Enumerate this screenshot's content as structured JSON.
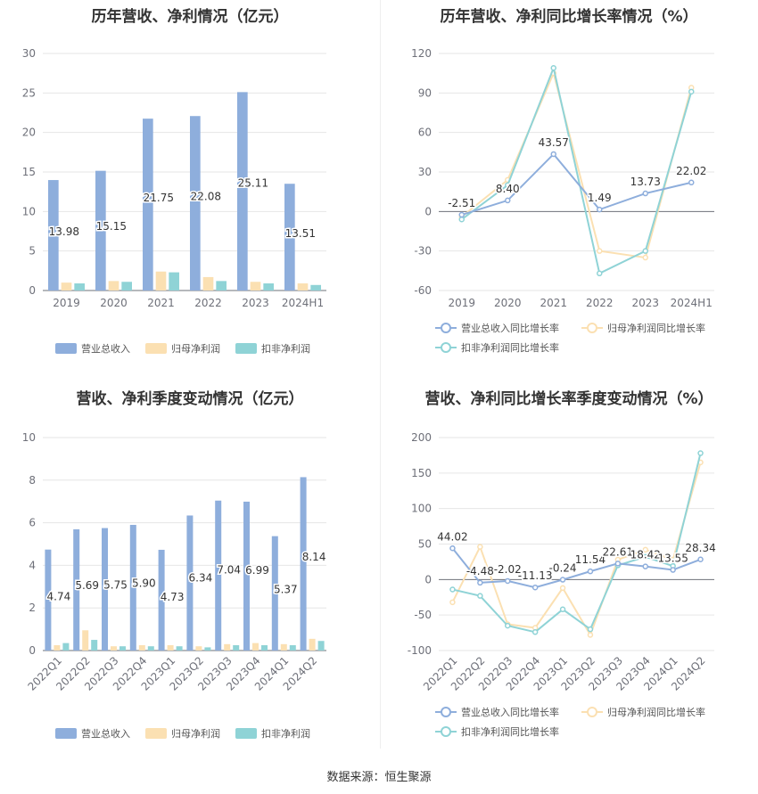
{
  "footer": "数据来源：恒生聚源",
  "legend": {
    "bar": [
      "营业总收入",
      "归母净利润",
      "扣非净利润"
    ],
    "line": [
      "营业总收入同比增长率",
      "归母净利润同比增长率",
      "扣非净利润同比增长率"
    ]
  },
  "colors": {
    "revenue": "#8eaedc",
    "net_profit": "#fbe0b2",
    "deducted": "#8fd3d6"
  },
  "chart_data": [
    {
      "type": "bar",
      "title": "历年营收、净利情况（亿元）",
      "categories": [
        "2019",
        "2020",
        "2021",
        "2022",
        "2023",
        "2024H1"
      ],
      "ylim": [
        0,
        30
      ],
      "yticks": [
        0,
        5,
        10,
        15,
        20,
        25,
        30
      ],
      "series": [
        {
          "name": "营业总收入",
          "values": [
            13.98,
            15.15,
            21.75,
            22.08,
            25.11,
            13.51
          ],
          "labels": [
            "13.98",
            "15.15",
            "21.75",
            "22.08",
            "25.11",
            "13.51"
          ]
        },
        {
          "name": "归母净利润",
          "values": [
            1.0,
            1.2,
            2.4,
            1.7,
            1.1,
            0.9
          ]
        },
        {
          "name": "扣非净利润",
          "values": [
            0.9,
            1.1,
            2.3,
            1.2,
            0.9,
            0.7
          ]
        }
      ]
    },
    {
      "type": "line",
      "title": "历年营收、净利同比增长率情况（%）",
      "categories": [
        "2019",
        "2020",
        "2021",
        "2022",
        "2023",
        "2024H1"
      ],
      "ylim": [
        -60,
        120
      ],
      "yticks": [
        -60,
        -30,
        0,
        30,
        60,
        90,
        120
      ],
      "series": [
        {
          "name": "营业总收入同比增长率",
          "values": [
            -2.51,
            8.4,
            43.57,
            1.49,
            13.73,
            22.02
          ],
          "labels": [
            "-2.51",
            "8.40",
            "43.57",
            "1.49",
            "13.73",
            "22.02"
          ]
        },
        {
          "name": "归母净利润同比增长率",
          "values": [
            -4,
            24,
            105,
            -30,
            -35,
            94
          ]
        },
        {
          "name": "扣非净利润同比增长率",
          "values": [
            -6,
            20,
            109,
            -47,
            -30,
            91
          ]
        }
      ]
    },
    {
      "type": "bar",
      "title": "营收、净利季度变动情况（亿元）",
      "categories": [
        "2022Q1",
        "2022Q2",
        "2022Q3",
        "2022Q4",
        "2023Q1",
        "2023Q2",
        "2023Q3",
        "2023Q4",
        "2024Q1",
        "2024Q2"
      ],
      "ylim": [
        0,
        10
      ],
      "yticks": [
        0,
        2,
        4,
        6,
        8,
        10
      ],
      "series": [
        {
          "name": "营业总收入",
          "values": [
            4.74,
            5.69,
            5.75,
            5.9,
            4.73,
            6.34,
            7.04,
            6.99,
            5.37,
            8.14
          ],
          "labels": [
            "4.74",
            "5.69",
            "5.75",
            "5.90",
            "4.73",
            "6.34",
            "7.04",
            "6.99",
            "5.37",
            "8.14"
          ]
        },
        {
          "name": "归母净利润",
          "values": [
            0.25,
            0.95,
            0.2,
            0.25,
            0.25,
            0.2,
            0.3,
            0.35,
            0.3,
            0.55
          ]
        },
        {
          "name": "扣非净利润",
          "values": [
            0.35,
            0.5,
            0.2,
            0.2,
            0.2,
            0.15,
            0.25,
            0.25,
            0.25,
            0.45
          ]
        }
      ]
    },
    {
      "type": "line",
      "title": "营收、净利同比增长率季度变动情况（%）",
      "categories": [
        "2022Q1",
        "2022Q2",
        "2022Q3",
        "2022Q4",
        "2023Q1",
        "2023Q2",
        "2023Q3",
        "2023Q4",
        "2024Q1",
        "2024Q2"
      ],
      "ylim": [
        -100,
        200
      ],
      "yticks": [
        -100,
        -50,
        0,
        50,
        100,
        150,
        200
      ],
      "series": [
        {
          "name": "营业总收入同比增长率",
          "values": [
            44.02,
            -4.48,
            -2.02,
            -11.13,
            -0.24,
            11.54,
            22.61,
            18.42,
            13.55,
            28.34
          ],
          "labels": [
            "44.02",
            "-4.48",
            "-2.02",
            "-11.13",
            "-0.24",
            "11.54",
            "22.61",
            "18.42",
            "13.55",
            "28.34"
          ]
        },
        {
          "name": "归母净利润同比增长率",
          "values": [
            -32,
            46,
            -63,
            -68,
            -12,
            -78,
            28,
            42,
            28,
            165
          ]
        },
        {
          "name": "扣非净利润同比增长率",
          "values": [
            -14,
            -23,
            -65,
            -74,
            -42,
            -70,
            20,
            32,
            19,
            178
          ]
        }
      ]
    }
  ]
}
